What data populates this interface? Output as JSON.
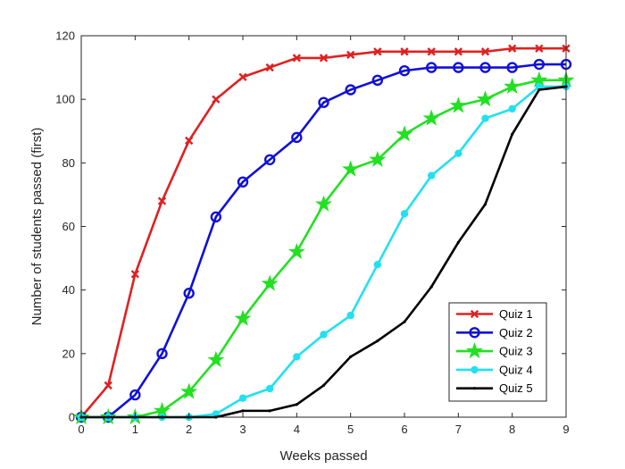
{
  "chart_data": {
    "type": "line",
    "xlabel": "Weeks passed",
    "ylabel": "Number of students passed (first)",
    "xlim": [
      0,
      9
    ],
    "ylim": [
      0,
      120
    ],
    "xticks": [
      "0",
      "1",
      "2",
      "3",
      "4",
      "5",
      "6",
      "7",
      "8",
      "9"
    ],
    "yticks": [
      "0",
      "20",
      "40",
      "60",
      "80",
      "100",
      "120"
    ],
    "grid": false,
    "legend_position": "bottom-right",
    "x": [
      0,
      0.5,
      1,
      1.5,
      2,
      2.5,
      3,
      3.5,
      4,
      4.5,
      5,
      5.5,
      6,
      6.5,
      7,
      7.5,
      8,
      8.5,
      9
    ],
    "series": [
      {
        "name": "Quiz 1",
        "color": "#e02020",
        "marker": "x",
        "values": [
          0,
          10,
          45,
          68,
          87,
          100,
          107,
          110,
          113,
          113,
          114,
          115,
          115,
          115,
          115,
          115,
          116,
          116,
          116
        ]
      },
      {
        "name": "Quiz 2",
        "color": "#1010d8",
        "marker": "circle",
        "values": [
          0,
          0,
          7,
          20,
          39,
          63,
          74,
          81,
          88,
          99,
          103,
          106,
          109,
          110,
          110,
          110,
          110,
          111,
          111
        ]
      },
      {
        "name": "Quiz 3",
        "color": "#22e022",
        "marker": "star",
        "values": [
          0,
          0,
          0,
          2,
          8,
          18,
          31,
          42,
          52,
          67,
          78,
          81,
          89,
          94,
          98,
          100,
          104,
          106,
          106
        ]
      },
      {
        "name": "Quiz 4",
        "color": "#22e0f0",
        "marker": "dot",
        "values": [
          0,
          0,
          0,
          0,
          0,
          1,
          6,
          9,
          19,
          26,
          32,
          48,
          64,
          76,
          83,
          94,
          97,
          104,
          104
        ]
      },
      {
        "name": "Quiz 5",
        "color": "#000000",
        "marker": "point",
        "values": [
          0,
          0,
          0,
          0,
          0,
          0,
          2,
          2,
          4,
          10,
          19,
          24,
          30,
          41,
          55,
          67,
          89,
          103,
          104
        ]
      }
    ]
  }
}
